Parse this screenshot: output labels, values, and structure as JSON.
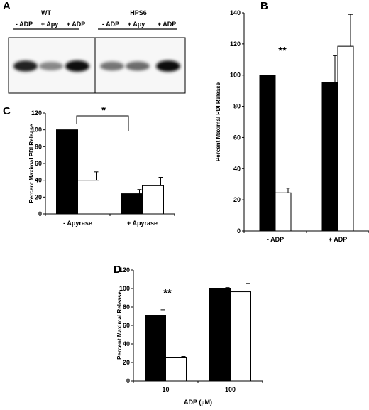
{
  "panels": {
    "a": "A",
    "b": "B",
    "c": "C",
    "d": "D"
  },
  "blot": {
    "groups": [
      {
        "name": "WT",
        "lanes": [
          "- ADP",
          "+ Apy",
          "+ ADP"
        ],
        "intensity": [
          0.9,
          0.35,
          1.0
        ]
      },
      {
        "name": "HPS6",
        "lanes": [
          "- ADP",
          "+ Apy",
          "+ ADP"
        ],
        "intensity": [
          0.45,
          0.5,
          1.0
        ]
      }
    ]
  },
  "chart_data": [
    {
      "panel": "B",
      "type": "bar",
      "categories": [
        "- ADP",
        "+ ADP"
      ],
      "series": [
        {
          "color": "#000000",
          "values": [
            100,
            95.5
          ],
          "errors": [
            0,
            17
          ]
        },
        {
          "color": "#ffffff",
          "values": [
            24.5,
            118.5
          ],
          "errors": [
            3,
            20.5
          ]
        }
      ],
      "ylabel": "Percent Maximal PDI Release",
      "ylim": [
        0,
        140
      ],
      "yticks": [
        0,
        20,
        40,
        60,
        80,
        100,
        120,
        140
      ],
      "significance": "**",
      "grid": false
    },
    {
      "panel": "C",
      "type": "bar",
      "categories": [
        "- Apyrase",
        "+ Apyrase"
      ],
      "series": [
        {
          "color": "#000000",
          "values": [
            100,
            24
          ],
          "errors": [
            0,
            5
          ]
        },
        {
          "color": "#ffffff",
          "values": [
            40,
            33.5
          ],
          "errors": [
            10,
            10
          ]
        }
      ],
      "ylabel": "Percent Maximal PDI Release",
      "ylim": [
        0,
        120
      ],
      "yticks": [
        0,
        20,
        40,
        60,
        80,
        100,
        120
      ],
      "significance": "*",
      "grid": false
    },
    {
      "panel": "D",
      "type": "bar",
      "categories": [
        "10",
        "100"
      ],
      "series": [
        {
          "color": "#000000",
          "values": [
            70.5,
            100
          ],
          "errors": [
            6.5,
            1
          ]
        },
        {
          "color": "#ffffff",
          "values": [
            25,
            96.5
          ],
          "errors": [
            1.5,
            9
          ]
        }
      ],
      "xlabel": "ADP (µM)",
      "ylabel": "Percent Maximal Release",
      "ylim": [
        0,
        120
      ],
      "yticks": [
        0,
        20,
        40,
        60,
        80,
        100,
        120
      ],
      "significance": "**",
      "grid": false
    }
  ]
}
